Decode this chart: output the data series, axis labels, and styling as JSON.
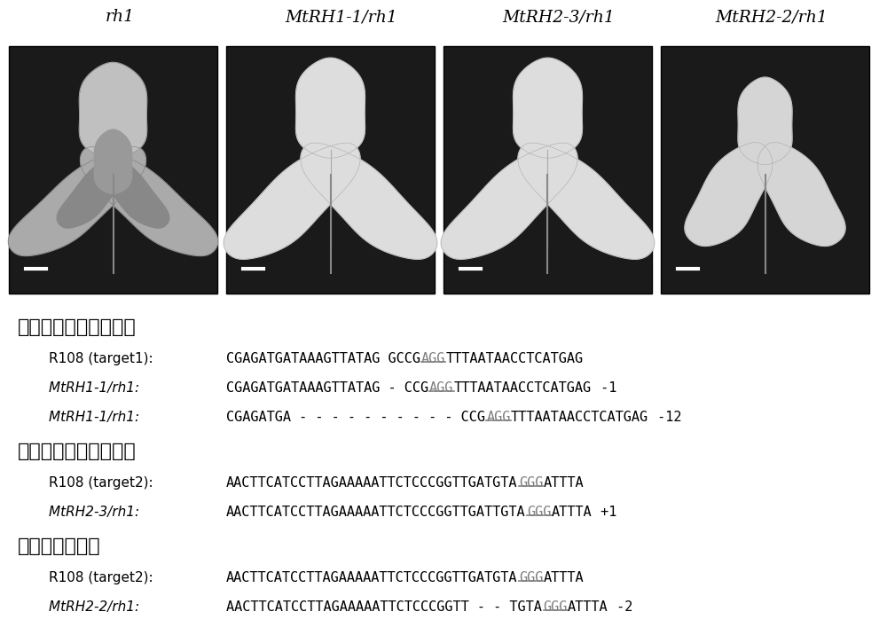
{
  "title_labels": [
    "rh1",
    "MtRH1-1/rh1",
    "MtRH2-3/rh1",
    "MtRH2-2/rh1"
  ],
  "section_headers": [
    "绍合双等位敲除突变体",
    "绍合单等位敲除突变体",
    "杂合敲除突变体"
  ],
  "highlight_color": "#808080",
  "background_color": "#ffffff",
  "text_color": "#000000",
  "panel_bg": "#1a1a1a",
  "leaf_colors_panel0": [
    "#b0b0b0",
    "#b0b0b0",
    "#c8c8c8",
    "#888888",
    "#888888"
  ],
  "leaf_colors_panels": [
    "#e0e0e0",
    "#e0e0e0",
    "#e8e8e8"
  ],
  "leaf_colors_panel3": [
    "#d8d8d8",
    "#d8d8d8",
    "#e0e0e0"
  ],
  "seq_lines": [
    {
      "section": 0,
      "label": "R108 (target1):",
      "italic": false,
      "before": "CGAGATGATAAAGTTATAG GCCG",
      "highlight": "AGG",
      "after": "TTTAATAACCTCATGAG",
      "suffix": ""
    },
    {
      "section": 0,
      "label": "MtRH1-1/rh1:",
      "italic": true,
      "before": "CGAGATGATAAAGTTATAG - CCG",
      "highlight": "AGG",
      "after": "TTTAATAACCTCATGAG",
      "suffix": " -1"
    },
    {
      "section": 0,
      "label": "MtRH1-1/rh1:",
      "italic": true,
      "before": "CGAGATGA - - - - - - - - - - CCG",
      "highlight": "AGG",
      "after": "TTTAATAACCTCATGAG",
      "suffix": " -12"
    },
    {
      "section": 1,
      "label": "R108 (target2):",
      "italic": false,
      "before": "AACTTCATCCTTAGAAAAATTCTCCCGGTTGATGTA",
      "highlight": "GGG",
      "after": "ATTTA",
      "suffix": ""
    },
    {
      "section": 1,
      "label": "MtRH2-3/rh1:",
      "italic": true,
      "before": "AACTTCATCCTTAGAAAAATTCTCCCGGTTGATTGTA",
      "highlight": "GGG",
      "after": "ATTTA",
      "suffix": " +1"
    },
    {
      "section": 2,
      "label": "R108 (target2):",
      "italic": false,
      "before": "AACTTCATCCTTAGAAAAATTCTCCCGGTTGATGTA",
      "highlight": "GGG",
      "after": "ATTTA",
      "suffix": ""
    },
    {
      "section": 2,
      "label": "MtRH2-2/rh1:",
      "italic": true,
      "before": "AACTTCATCCTTAGAAAAATTCTCCCGGTT - - TGTA",
      "highlight": "GGG",
      "after": "ATTTA",
      "suffix": " -2"
    }
  ]
}
